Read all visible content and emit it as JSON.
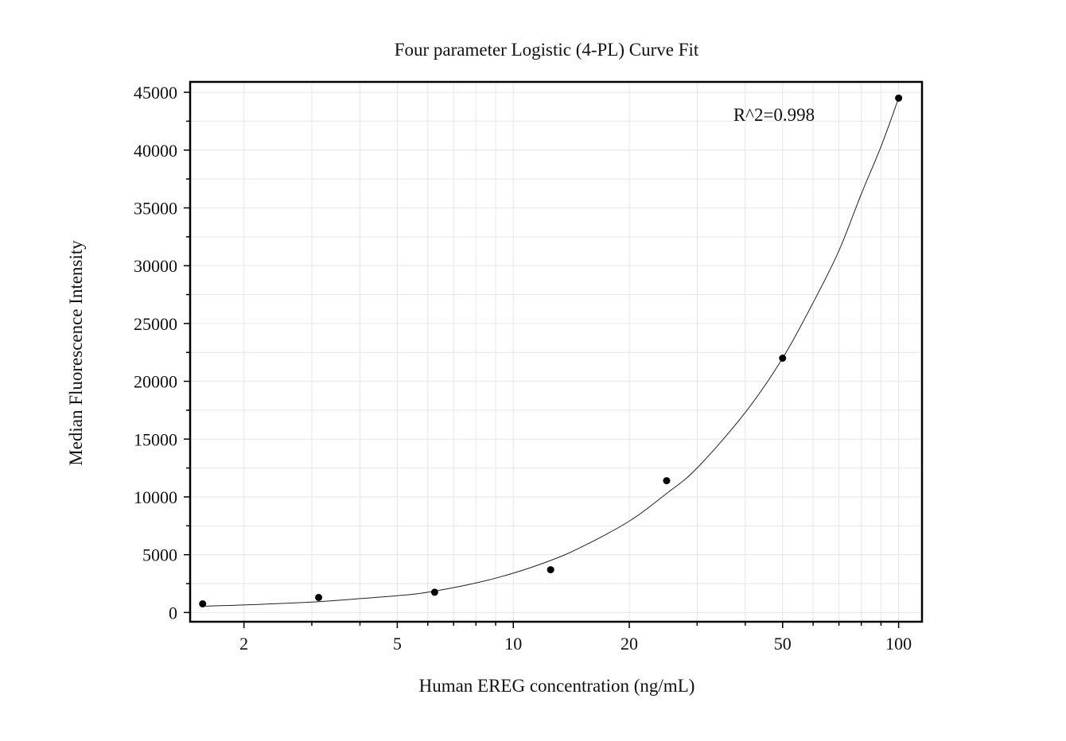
{
  "chart_data": {
    "type": "scatter",
    "title": "Four parameter Logistic (4-PL) Curve Fit",
    "xlabel": "Human EREG concentration (ng/mL)",
    "ylabel": "Median Fluorescence Intensity",
    "x_scale": "log",
    "xlim": [
      1.45,
      115
    ],
    "ylim": [
      -800,
      45900
    ],
    "x_ticks": [
      2,
      5,
      10,
      20,
      50,
      100
    ],
    "x_tick_labels": [
      "2",
      "5",
      "10",
      "20",
      "50",
      "100"
    ],
    "y_ticks": [
      0,
      5000,
      10000,
      15000,
      20000,
      25000,
      30000,
      35000,
      40000,
      45000
    ],
    "y_tick_labels": [
      "0",
      "5000",
      "10000",
      "15000",
      "20000",
      "25000",
      "30000",
      "35000",
      "40000",
      "45000"
    ],
    "grid": true,
    "annotation": "R^2=0.998",
    "series": [
      {
        "x": [
          1.5625,
          3.125,
          6.25,
          12.5,
          25,
          50,
          100
        ],
        "y": [
          750,
          1300,
          1750,
          3700,
          11400,
          22000,
          44500
        ]
      }
    ],
    "fit_curve": {
      "x": [
        1.56,
        2,
        3,
        4,
        5,
        6,
        8,
        10,
        12.5,
        15,
        20,
        25,
        30,
        40,
        50,
        60,
        70,
        80,
        90,
        100
      ],
      "y": [
        550,
        650,
        900,
        1200,
        1450,
        1750,
        2550,
        3400,
        4500,
        5650,
        7900,
        10300,
        12500,
        17300,
        22000,
        26800,
        31300,
        36200,
        40300,
        44500
      ]
    }
  }
}
